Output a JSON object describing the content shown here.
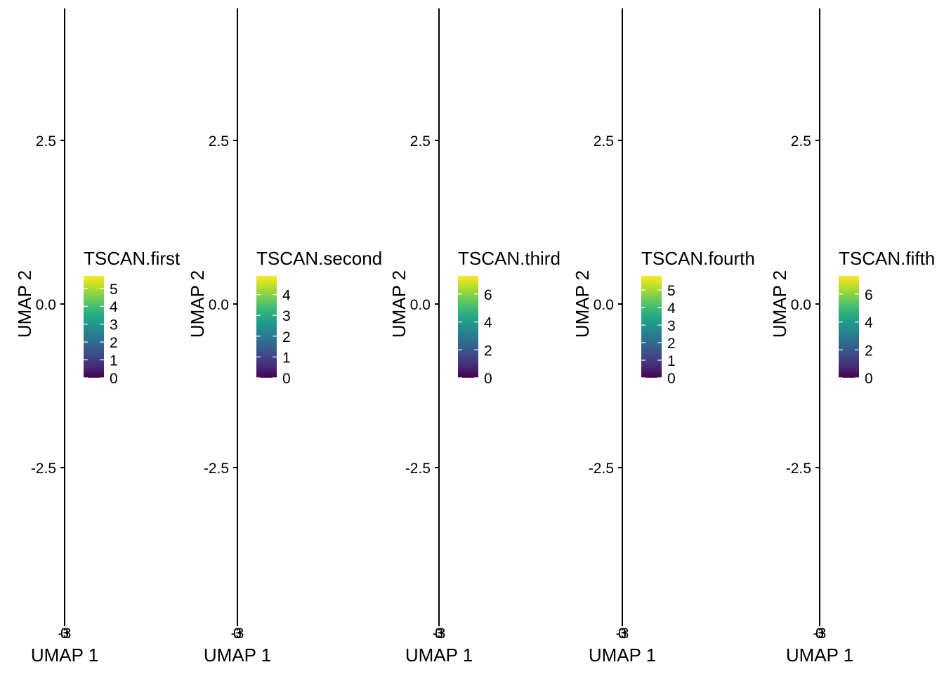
{
  "colors": {
    "axis": "#000000",
    "viridis": [
      "#440154",
      "#482878",
      "#3E4A89",
      "#31688E",
      "#26828E",
      "#1F9E89",
      "#35B779",
      "#6DCD59",
      "#B4DE2C",
      "#FDE725"
    ]
  },
  "chart_data": [
    {
      "type": "scatter",
      "xlabel": "UMAP 1",
      "ylabel": "UMAP 2",
      "ylim": [
        -4.6,
        4.5
      ],
      "yticks": [
        {
          "v": 2.5,
          "label": "2.5"
        },
        {
          "v": 0.0,
          "label": "0.0"
        },
        {
          "v": -2.5,
          "label": "-2.5"
        }
      ],
      "xtick_labels": [
        "-3",
        "0",
        "3"
      ],
      "legend": {
        "title": "TSCAN.first",
        "max": 5.7,
        "breaks": [
          0,
          1,
          2,
          3,
          4,
          5
        ]
      },
      "points": []
    },
    {
      "type": "scatter",
      "xlabel": "UMAP 1",
      "ylabel": "UMAP 2",
      "ylim": [
        -4.6,
        4.5
      ],
      "yticks": [
        {
          "v": 2.5,
          "label": "2.5"
        },
        {
          "v": 0.0,
          "label": "0.0"
        },
        {
          "v": -2.5,
          "label": "-2.5"
        }
      ],
      "xtick_labels": [
        "-3",
        "0",
        "3"
      ],
      "legend": {
        "title": "TSCAN.second",
        "max": 4.9,
        "breaks": [
          0,
          1,
          2,
          3,
          4
        ]
      },
      "points": []
    },
    {
      "type": "scatter",
      "xlabel": "UMAP 1",
      "ylabel": "UMAP 2",
      "ylim": [
        -4.6,
        4.5
      ],
      "yticks": [
        {
          "v": 2.5,
          "label": "2.5"
        },
        {
          "v": 0.0,
          "label": "0.0"
        },
        {
          "v": -2.5,
          "label": "-2.5"
        }
      ],
      "xtick_labels": [
        "-3",
        "0",
        "3"
      ],
      "legend": {
        "title": "TSCAN.third",
        "max": 7.3,
        "breaks": [
          0,
          2,
          4,
          6
        ]
      },
      "points": []
    },
    {
      "type": "scatter",
      "xlabel": "UMAP 1",
      "ylabel": "UMAP 2",
      "ylim": [
        -4.6,
        4.5
      ],
      "yticks": [
        {
          "v": 2.5,
          "label": "2.5"
        },
        {
          "v": 0.0,
          "label": "0.0"
        },
        {
          "v": -2.5,
          "label": "-2.5"
        }
      ],
      "xtick_labels": [
        "-3",
        "0",
        "3"
      ],
      "legend": {
        "title": "TSCAN.fourth",
        "max": 5.8,
        "breaks": [
          0,
          1,
          2,
          3,
          4,
          5
        ]
      },
      "points": []
    },
    {
      "type": "scatter",
      "xlabel": "UMAP 1",
      "ylabel": "UMAP 2",
      "ylim": [
        -4.6,
        4.5
      ],
      "yticks": [
        {
          "v": 2.5,
          "label": "2.5"
        },
        {
          "v": 0.0,
          "label": "0.0"
        },
        {
          "v": -2.5,
          "label": "-2.5"
        }
      ],
      "xtick_labels": [
        "-3",
        "0",
        "3"
      ],
      "legend": {
        "title": "TSCAN.fifth",
        "max": 7.3,
        "breaks": [
          0,
          2,
          4,
          6
        ]
      },
      "points": []
    }
  ]
}
